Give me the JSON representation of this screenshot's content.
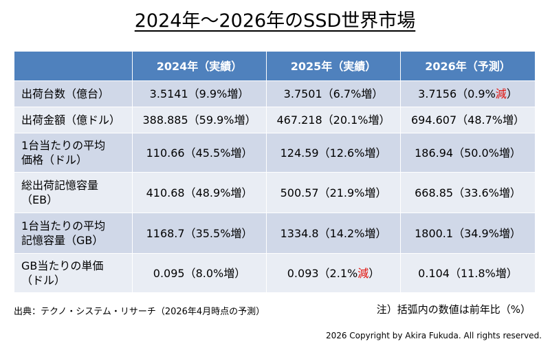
{
  "title": "2024年～2026年のSSD世界市場",
  "table": {
    "headers": [
      "",
      "2024年（実績）",
      "2025年（実績）",
      "2026年（予測）"
    ],
    "rows": [
      {
        "label_lines": [
          "出荷台数（億台）"
        ],
        "cells": [
          {
            "text": "3.5141（9.9%増）",
            "emphasis": ""
          },
          {
            "text": "3.7501（6.7%増）",
            "emphasis": ""
          },
          {
            "text": "3.7156（0.9%",
            "emphasis": "減",
            "tail": "）"
          }
        ]
      },
      {
        "label_lines": [
          "出荷金額（億ドル）"
        ],
        "cells": [
          {
            "text": "388.885（59.9%増）",
            "emphasis": ""
          },
          {
            "text": "467.218（20.1%増）",
            "emphasis": ""
          },
          {
            "text": "694.607（48.7%増）",
            "emphasis": ""
          }
        ]
      },
      {
        "label_lines": [
          "1台当たりの平均",
          "価格（ドル）"
        ],
        "cells": [
          {
            "text": "110.66（45.5%増）",
            "emphasis": ""
          },
          {
            "text": "124.59（12.6%増）",
            "emphasis": ""
          },
          {
            "text": "186.94（50.0%増）",
            "emphasis": ""
          }
        ]
      },
      {
        "label_lines": [
          "総出荷記憶容量",
          "（EB）"
        ],
        "cells": [
          {
            "text": "410.68（48.9%増）",
            "emphasis": ""
          },
          {
            "text": "500.57（21.9%増）",
            "emphasis": ""
          },
          {
            "text": "668.85（33.6%増）",
            "emphasis": ""
          }
        ]
      },
      {
        "label_lines": [
          "1台当たりの平均",
          "記憶容量（GB）"
        ],
        "cells": [
          {
            "text": "1168.7（35.5%増）",
            "emphasis": ""
          },
          {
            "text": "1334.8（14.2%増）",
            "emphasis": ""
          },
          {
            "text": "1800.1（34.9%増）",
            "emphasis": ""
          }
        ]
      },
      {
        "label_lines": [
          "GB当たりの単価",
          "（ドル）"
        ],
        "cells": [
          {
            "text": "0.095（8.0%増）",
            "emphasis": ""
          },
          {
            "text": "0.093（2.1%",
            "emphasis": "減",
            "tail": "）"
          },
          {
            "text": "0.104（11.8%増）",
            "emphasis": ""
          }
        ]
      }
    ]
  },
  "source": "出典：テクノ・システム・リサーチ（2026年4月時点の予測）",
  "note": "注）括弧内の数値は前年比（%）",
  "copyright": "2026 Copyright by Akira Fukuda.  All rights reserved.",
  "colors": {
    "header_bg": "#4f81bd",
    "row_odd_bg": "#d0d8e8",
    "row_even_bg": "#e9edf4",
    "decrease_text": "#e3120b"
  }
}
